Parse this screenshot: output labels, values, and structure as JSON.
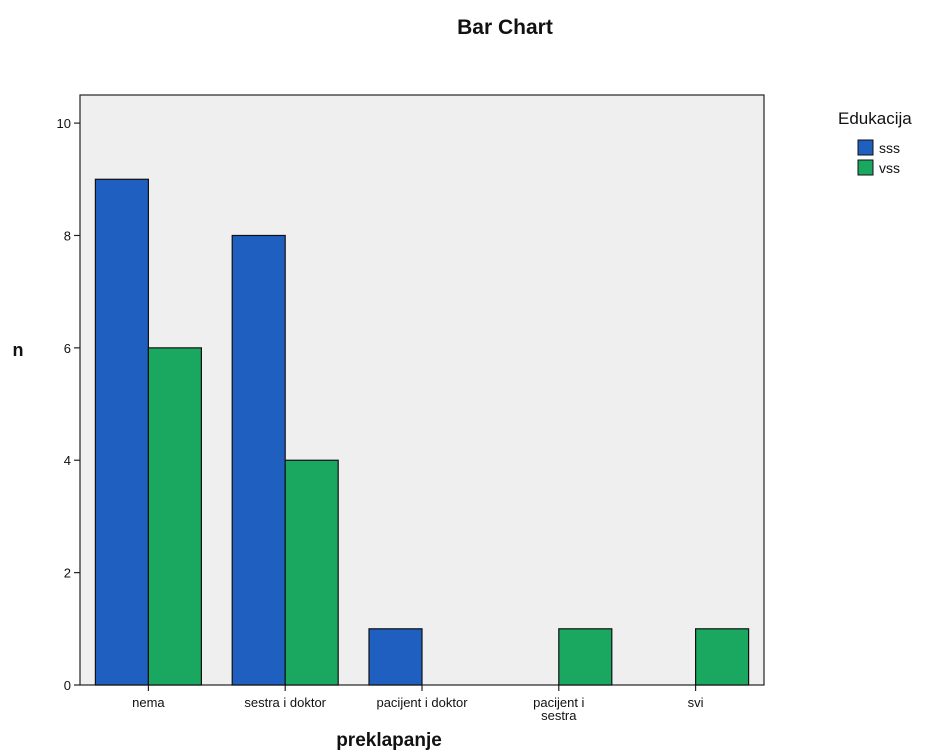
{
  "chart_data": {
    "type": "bar",
    "title": "Bar Chart",
    "xlabel": "preklapanje",
    "ylabel": "n",
    "categories": [
      "nema",
      "sestra i doktor",
      "pacijent i doktor",
      "pacijent i sestra",
      "svi"
    ],
    "series": [
      {
        "name": "sss",
        "values": [
          9,
          8,
          1,
          0,
          0
        ],
        "color": "#1f5fc0"
      },
      {
        "name": "vss",
        "values": [
          6,
          4,
          0,
          1,
          1
        ],
        "color": "#1aa860"
      }
    ],
    "ylim": [
      0,
      10.5
    ],
    "yticks": [
      0,
      2,
      4,
      6,
      8,
      10
    ],
    "legend_title": "Edukacija",
    "legend_position": "top-right",
    "grid": false,
    "plot_background": "#efefef"
  }
}
